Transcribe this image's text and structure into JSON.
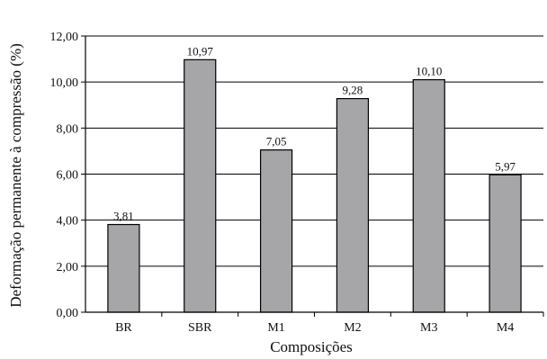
{
  "chart_data": {
    "type": "bar",
    "title": "",
    "xlabel": "Composições",
    "ylabel": "Deformação permanente à compressão (%)",
    "categories": [
      "BR",
      "SBR",
      "M1",
      "M2",
      "M3",
      "M4"
    ],
    "values": [
      3.81,
      10.97,
      7.05,
      9.28,
      10.1,
      5.97
    ],
    "value_labels": [
      "3,81",
      "10,97",
      "7,05",
      "9,28",
      "10,10",
      "5,97"
    ],
    "ylim": [
      0,
      12
    ],
    "yticks": [
      0,
      2,
      4,
      6,
      8,
      10,
      12
    ],
    "ytick_labels": [
      "0,00",
      "2,00",
      "4,00",
      "6,00",
      "8,00",
      "10,00",
      "12,00"
    ],
    "grid": "horizontal",
    "legend": "none",
    "bar_color": "#a6a6a8",
    "bar_edge_color": "#000000"
  }
}
